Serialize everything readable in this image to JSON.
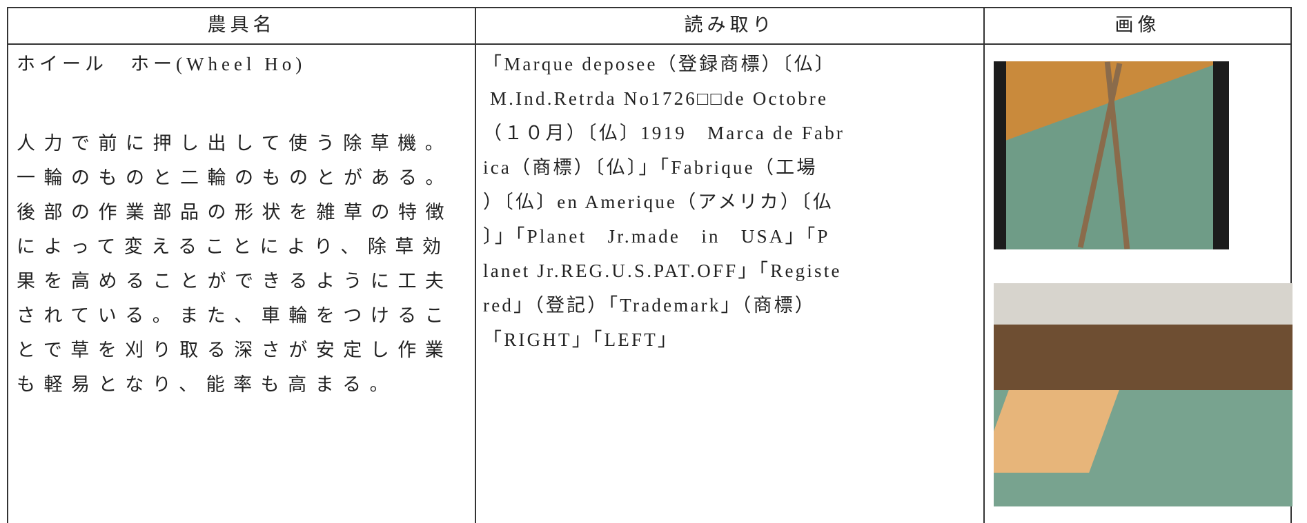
{
  "table": {
    "headers": [
      "農具名",
      "読み取り",
      "画像"
    ],
    "rows": [
      [
        {
          "name": "ホイール　ホー(Wheel Ho)",
          "lines": [
            "人力で前に押し出して使う除草機。",
            "一輪のものと二輪のものとがある。",
            "後部の作業部品の形状を雑草の特徴",
            "によって変えることにより、除草効",
            "果を高めることができるように工夫",
            "されている。また、車輪をつけるこ",
            "とで草を刈り取る深さが安定し作業",
            "も軽易となり、能率も高まる。"
          ]
        },
        {
          "lines": [
            "「Marque deposee（登録商標）〔仏〕",
            " M.Ind.Retrda No1726□□de Octobre",
            "（１０月）〔仏〕1919　Marca de Fabr",
            "ica（商標）〔仏〕」「Fabrique（工場",
            "）〔仏〕en Amerique（アメリカ）〔仏",
            "〕」「Planet　Jr.made　in　USA」「P",
            "lanet Jr.REG.U.S.PAT.OFF」「Registe",
            "red」（登記）「Trademark」（商標）",
            "「RIGHT」「LEFT」"
          ]
        }
      ]
    ]
  }
}
